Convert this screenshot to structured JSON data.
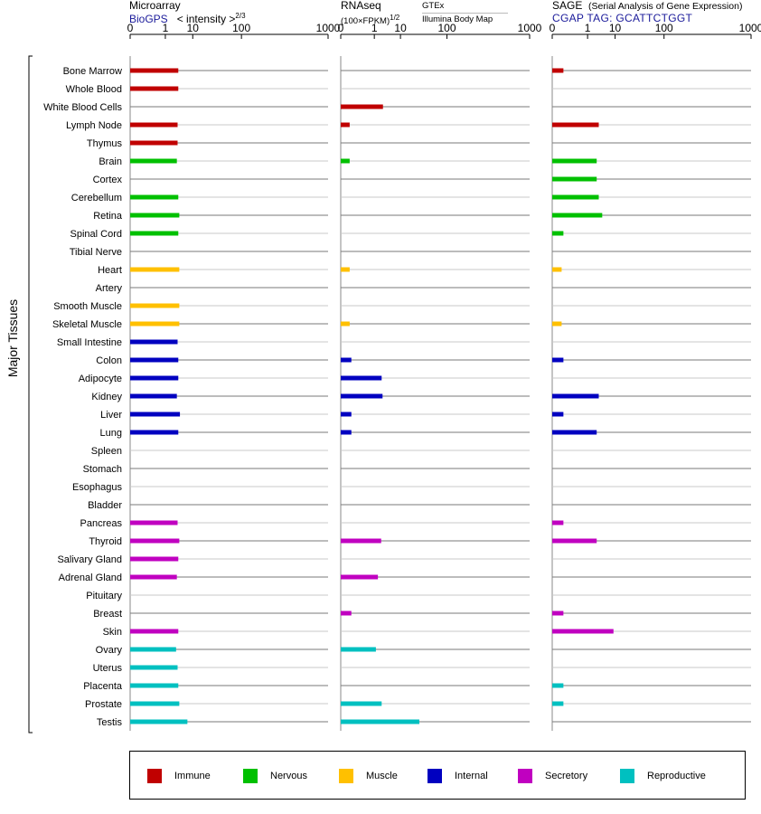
{
  "headers": {
    "microarray": {
      "title": "Microarray",
      "source": "BioGPS",
      "unit_prefix": "< intensity >",
      "unit_exp": "2/3"
    },
    "rnaseq": {
      "title": "RNAseq",
      "unit_prefix": "(100×FPKM)",
      "unit_exp": "1/2",
      "source_gtex": "GTEx",
      "source_ibm": "Illumina Body Map"
    },
    "sage": {
      "title": "SAGE",
      "subtitle": "(Serial Analysis of Gene Expression)",
      "source": "CGAP TAG: GCATTCTGGT"
    }
  },
  "chart_data": {
    "type": "bar",
    "orientation": "horizontal",
    "group_label": "Major Tissues",
    "axis_ticks": [
      "0",
      "1",
      "10",
      "100",
      "1000"
    ],
    "axis_tick_values": [
      0,
      1,
      10,
      100,
      1000
    ],
    "scale": "power",
    "xlim": [
      0,
      1000
    ],
    "categories": [
      "Bone Marrow",
      "Whole Blood",
      "White Blood Cells",
      "Lymph Node",
      "Thymus",
      "Brain",
      "Cortex",
      "Cerebellum",
      "Retina",
      "Spinal Cord",
      "Tibial Nerve",
      "Heart",
      "Artery",
      "Smooth Muscle",
      "Skeletal Muscle",
      "Small Intestine",
      "Colon",
      "Adipocyte",
      "Kidney",
      "Liver",
      "Lung",
      "Spleen",
      "Stomach",
      "Esophagus",
      "Bladder",
      "Pancreas",
      "Thyroid",
      "Salivary Gland",
      "Adrenal Gland",
      "Pituitary",
      "Breast",
      "Skin",
      "Ovary",
      "Uterus",
      "Placenta",
      "Prostate",
      "Testis"
    ],
    "groups": [
      "Immune",
      "Immune",
      "Immune",
      "Immune",
      "Immune",
      "Nervous",
      "Nervous",
      "Nervous",
      "Nervous",
      "Nervous",
      "Nervous",
      "Muscle",
      "Muscle",
      "Muscle",
      "Muscle",
      "Internal",
      "Internal",
      "Internal",
      "Internal",
      "Internal",
      "Internal",
      "Internal",
      "Internal",
      "Internal",
      "Internal",
      "Secretory",
      "Secretory",
      "Secretory",
      "Secretory",
      "Secretory",
      "Secretory",
      "Secretory",
      "Reproductive",
      "Reproductive",
      "Reproductive",
      "Reproductive",
      "Reproductive"
    ],
    "group_colors": {
      "Immune": "#c00000",
      "Nervous": "#00c000",
      "Muscle": "#ffc000",
      "Internal": "#0000c0",
      "Secretory": "#c000c0",
      "Reproductive": "#00c0c0"
    },
    "legend": [
      "Immune",
      "Nervous",
      "Muscle",
      "Internal",
      "Secretory",
      "Reproductive"
    ],
    "series": [
      {
        "name": "Microarray",
        "values": [
          3.5,
          3.5,
          null,
          3.3,
          3.3,
          3.1,
          null,
          3.5,
          3.8,
          3.5,
          null,
          3.8,
          null,
          3.8,
          3.8,
          3.3,
          3.5,
          3.5,
          3.1,
          4.0,
          3.5,
          null,
          null,
          null,
          null,
          3.3,
          3.8,
          3.5,
          3.1,
          null,
          null,
          3.5,
          2.9,
          3.3,
          3.5,
          3.8,
          7.0
        ]
      },
      {
        "name": "RNAseq",
        "values": [
          null,
          null,
          2.5,
          0.005,
          null,
          0.005,
          null,
          null,
          null,
          null,
          null,
          0.005,
          null,
          null,
          0.005,
          null,
          0.01,
          2.2,
          2.4,
          0.01,
          0.01,
          null,
          null,
          null,
          null,
          null,
          2.1,
          null,
          1.5,
          null,
          0.01,
          null,
          1.2,
          null,
          null,
          2.2,
          30
        ]
      },
      {
        "name": "SAGE",
        "values": [
          0.01,
          null,
          null,
          3.0,
          null,
          2.5,
          2.5,
          3.0,
          4.0,
          0.01,
          null,
          0.005,
          null,
          null,
          0.005,
          null,
          0.01,
          null,
          3.0,
          0.01,
          2.5,
          null,
          null,
          null,
          null,
          0.01,
          2.5,
          null,
          null,
          null,
          0.01,
          9.0,
          null,
          null,
          0.01,
          0.01,
          null
        ]
      }
    ]
  }
}
